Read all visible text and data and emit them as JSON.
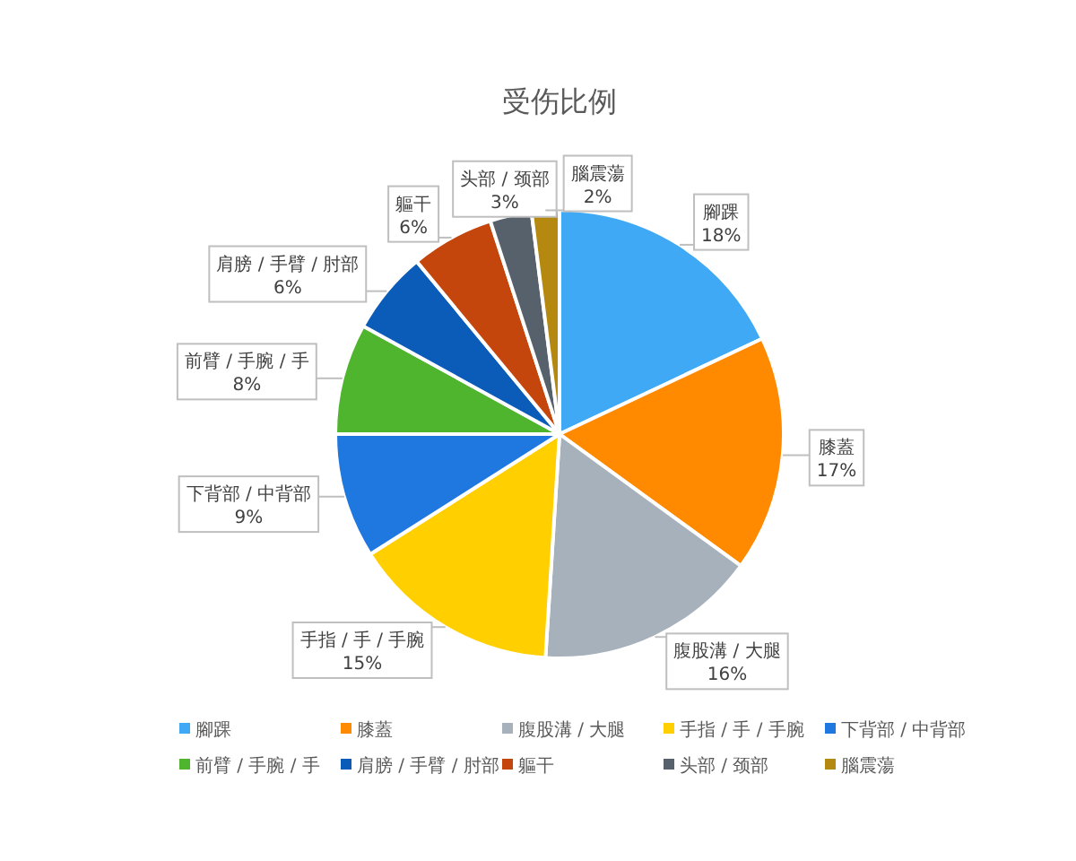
{
  "chart_data": {
    "type": "pie",
    "title": "受伤比例",
    "categories": [
      "腳踝",
      "膝蓋",
      "腹股溝 / 大腿",
      "手指 / 手 / 手腕",
      "下背部 / 中背部",
      "前臂 / 手腕 / 手",
      "肩膀 / 手臂 / 肘部",
      "軀干",
      "头部 / 颈部",
      "腦震蕩"
    ],
    "values": [
      18,
      17,
      16,
      15,
      9,
      8,
      6,
      6,
      3,
      2
    ],
    "value_labels": [
      "18%",
      "17%",
      "16%",
      "15%",
      "9%",
      "8%",
      "6%",
      "6%",
      "3%",
      "2%"
    ],
    "colors": [
      "#3fa9f5",
      "#ff8a00",
      "#a7b1bb",
      "#ffcf00",
      "#1f78e0",
      "#4fb52f",
      "#0b5cb8",
      "#c4460c",
      "#57616c",
      "#b5880f"
    ],
    "legend": "bottom"
  }
}
